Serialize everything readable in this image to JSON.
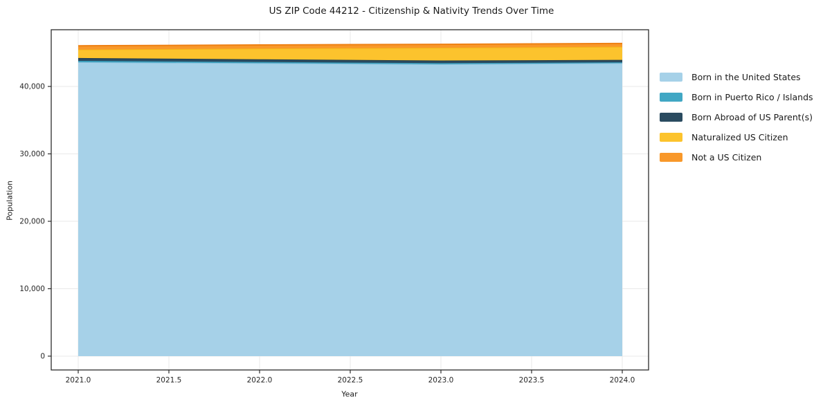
{
  "chart_data": {
    "type": "area",
    "stacked": true,
    "title": "US ZIP Code 44212 - Citizenship & Nativity Trends Over Time",
    "xlabel": "Year",
    "ylabel": "Population",
    "x": [
      2021,
      2022,
      2023,
      2024
    ],
    "xlim": [
      2021,
      2024
    ],
    "ylim": [
      0,
      48400
    ],
    "grid": true,
    "legend_position": "right-outside",
    "x_tick_values": [
      2021.0,
      2021.5,
      2022.0,
      2022.5,
      2023.0,
      2023.5,
      2024.0
    ],
    "x_tick_labels": [
      "2021.0",
      "2021.5",
      "2022.0",
      "2022.5",
      "2023.0",
      "2023.5",
      "2024.0"
    ],
    "y_tick_values": [
      0,
      10000,
      20000,
      30000,
      40000
    ],
    "y_tick_labels": [
      "0",
      "10,000",
      "20,000",
      "30,000",
      "40,000"
    ],
    "series": [
      {
        "name": "Born in the United States",
        "values": [
          43600,
          43450,
          43300,
          43450
        ],
        "fill": "#a6d1e8",
        "line": "#8cc2dd"
      },
      {
        "name": "Born in Puerto Rico / Islands",
        "values": [
          200,
          180,
          160,
          130
        ],
        "fill": "#41a7c4",
        "line": "#3897b5"
      },
      {
        "name": "Born Abroad of US Parent(s)",
        "values": [
          420,
          400,
          380,
          360
        ],
        "fill": "#2a4b60",
        "line": "#213c4e"
      },
      {
        "name": "Naturalized US Citizen",
        "values": [
          1250,
          1600,
          1900,
          1950
        ],
        "fill": "#fcc32d",
        "line": "#f6b418"
      },
      {
        "name": "Not a US Citizen",
        "values": [
          560,
          520,
          510,
          480
        ],
        "fill": "#f8982a",
        "line": "#ee8013"
      }
    ],
    "colors": {
      "frame": "#2b2b2b",
      "grid": "#e9e9e9",
      "tick_text": "#262626"
    }
  }
}
